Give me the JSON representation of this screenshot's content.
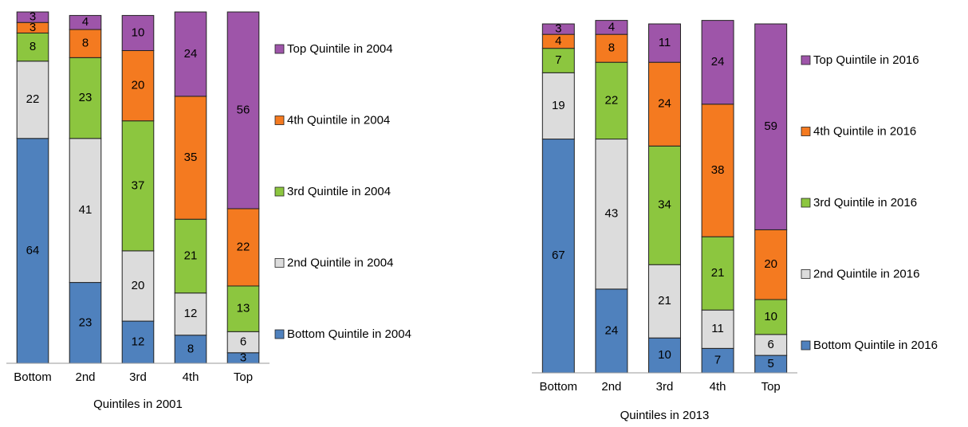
{
  "chart_data": [
    {
      "type": "stacked_bar",
      "x_label": "Quintiles in 2001",
      "categories": [
        "Bottom",
        "2nd",
        "3rd",
        "4th",
        "Top"
      ],
      "ylim": [
        0,
        100
      ],
      "series": [
        {
          "name": "Bottom Quintile in 2004",
          "color": "#4f81bd",
          "values": [
            64,
            23,
            12,
            8,
            3
          ]
        },
        {
          "name": "2nd Quintile in 2004",
          "color": "#dcdcdc",
          "values": [
            22,
            41,
            20,
            12,
            6
          ]
        },
        {
          "name": "3rd Quintile in 2004",
          "color": "#8cc63f",
          "values": [
            8,
            23,
            37,
            21,
            13
          ]
        },
        {
          "name": "4th Quintile in 2004",
          "color": "#f47a20",
          "values": [
            3,
            8,
            20,
            35,
            22
          ]
        },
        {
          "name": "Top Quintile in 2004",
          "color": "#9e55a9",
          "values": [
            3,
            4,
            10,
            24,
            56
          ]
        }
      ]
    },
    {
      "type": "stacked_bar",
      "x_label": "Quintiles in 2013",
      "categories": [
        "Bottom",
        "2nd",
        "3rd",
        "4th",
        "Top"
      ],
      "ylim": [
        0,
        100
      ],
      "series": [
        {
          "name": "Bottom Quintile in 2016",
          "color": "#4f81bd",
          "values": [
            67,
            24,
            10,
            7,
            5
          ]
        },
        {
          "name": "2nd Quintile in 2016",
          "color": "#dcdcdc",
          "values": [
            19,
            43,
            21,
            11,
            6
          ]
        },
        {
          "name": "3rd Quintile in 2016",
          "color": "#8cc63f",
          "values": [
            7,
            22,
            34,
            21,
            10
          ]
        },
        {
          "name": "4th Quintile in 2016",
          "color": "#f47a20",
          "values": [
            4,
            8,
            24,
            38,
            20
          ]
        },
        {
          "name": "Top Quintile in 2016",
          "color": "#9e55a9",
          "values": [
            3,
            4,
            11,
            24,
            59
          ]
        }
      ]
    }
  ]
}
